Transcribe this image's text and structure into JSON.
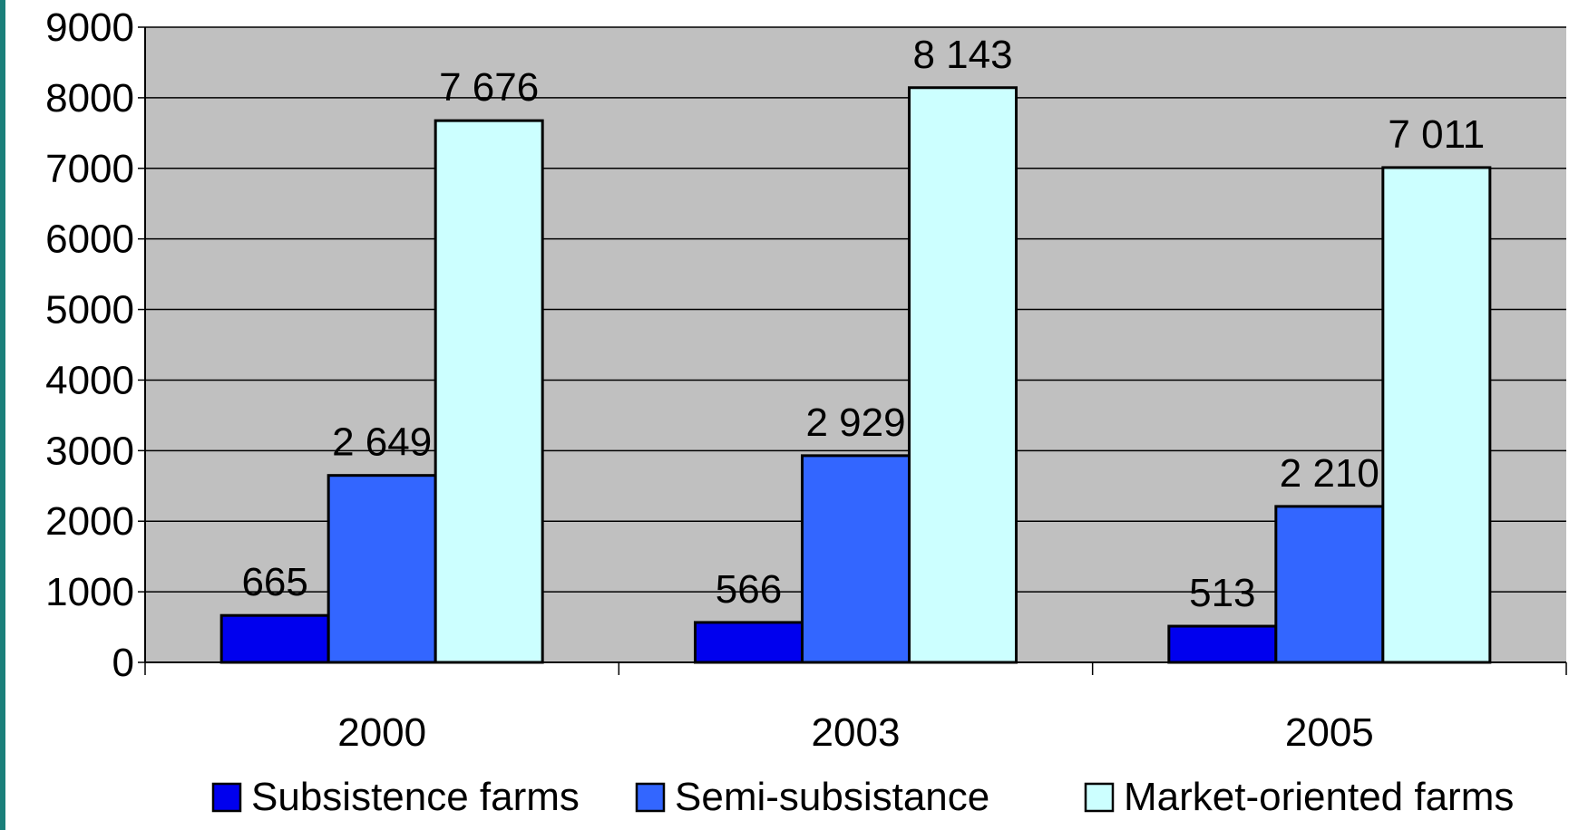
{
  "colors": {
    "accent": "#1a7f7a",
    "plot_background": "#c0c0c0",
    "gridline": "#000000",
    "bar_outline": "#000000"
  },
  "chart_data": {
    "type": "bar",
    "categories": [
      "2000",
      "2003",
      "2005"
    ],
    "series": [
      {
        "name": "Subsistence farms",
        "color": "#0000ee",
        "values": [
          665,
          566,
          513
        ],
        "labels": [
          "665",
          "566",
          "513"
        ]
      },
      {
        "name": "Semi-subsistance",
        "color": "#3366ff",
        "values": [
          2649,
          2929,
          2210
        ],
        "labels": [
          "2 649",
          "2 929",
          "2 210"
        ]
      },
      {
        "name": "Market-oriented farms",
        "color": "#ccffff",
        "values": [
          7676,
          8143,
          7011
        ],
        "labels": [
          "7 676",
          "8 143",
          "7 011"
        ]
      }
    ],
    "y_ticks": [
      "0",
      "1000",
      "2000",
      "3000",
      "4000",
      "5000",
      "6000",
      "7000",
      "8000",
      "9000"
    ],
    "ylim": [
      0,
      9000
    ],
    "grid": true,
    "legend_position": "bottom"
  }
}
